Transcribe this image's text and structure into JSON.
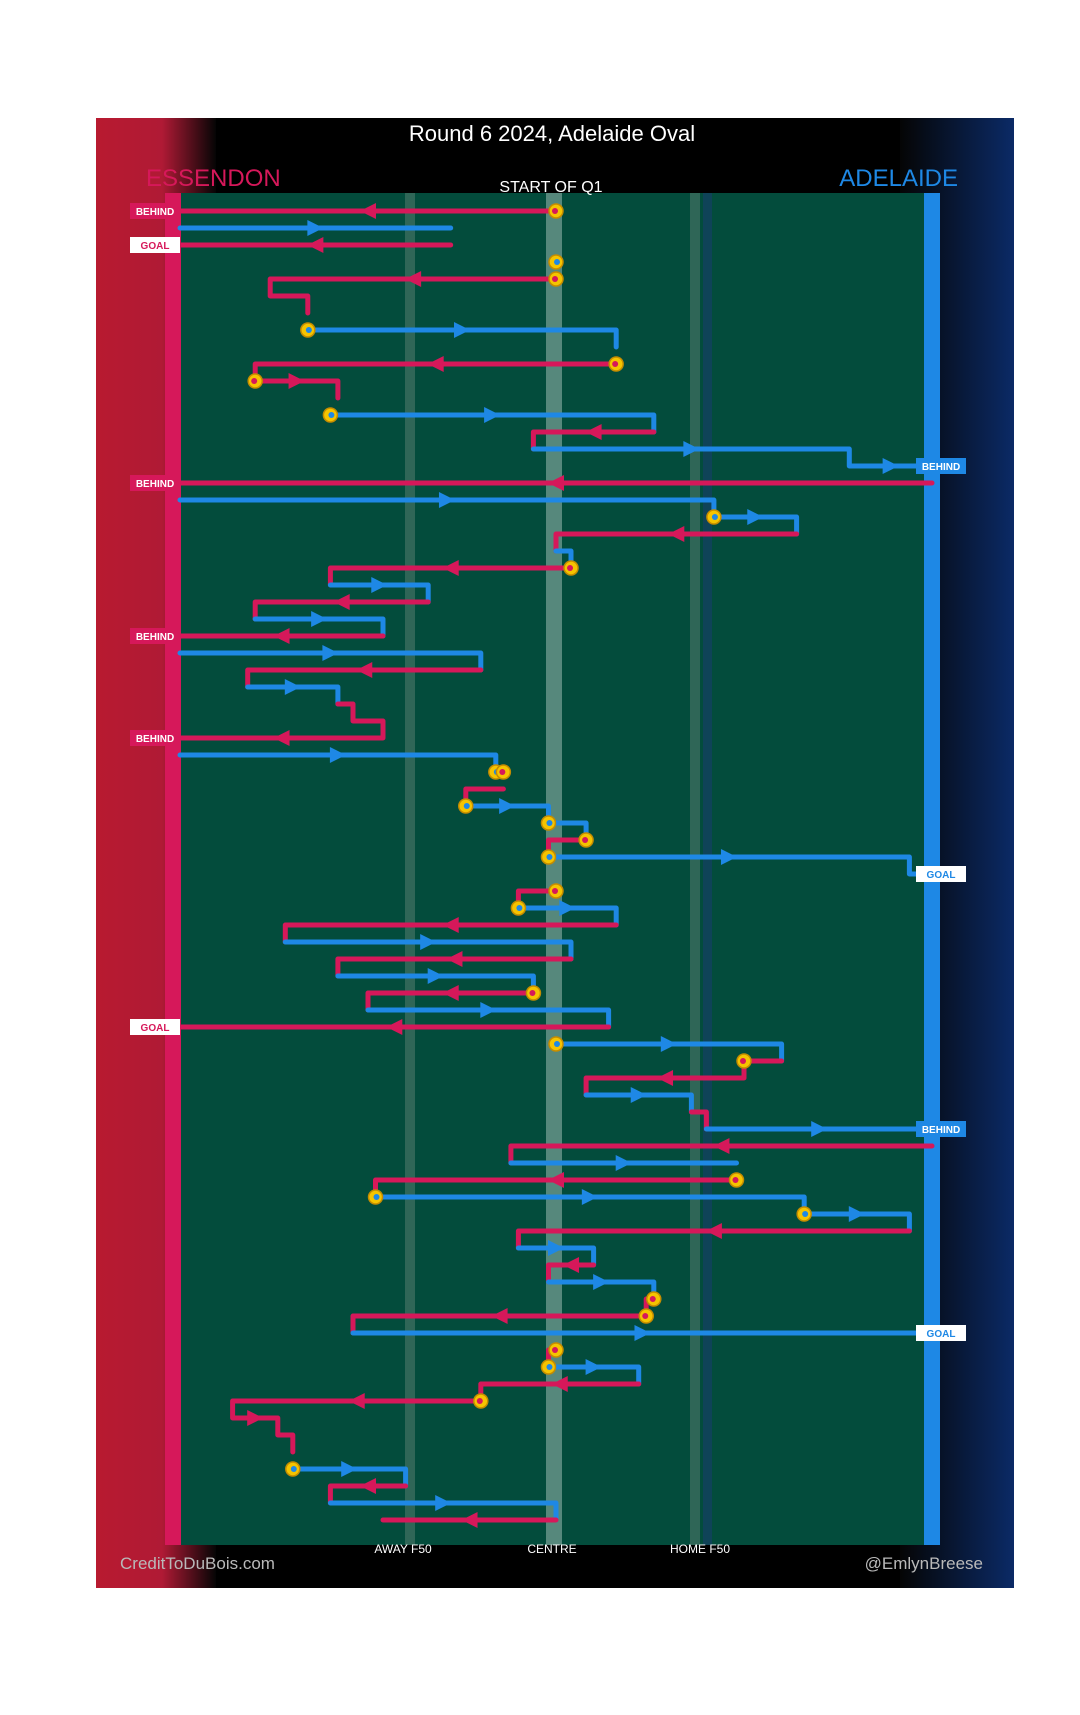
{
  "chart_data": {
    "type": "line",
    "title": "Round 6 2024, Adelaide Oval",
    "subtitle": "START OF Q1",
    "teams": {
      "left": {
        "name": "ESSENDON",
        "color": "#d6185a"
      },
      "right": {
        "name": "ADELAIDE",
        "color": "#1e88e5"
      }
    },
    "x_axis": {
      "range": [
        0,
        100
      ],
      "ticks": [
        {
          "value": 30,
          "label": "AWAY F50"
        },
        {
          "value": 50,
          "label": "CENTRE"
        },
        {
          "value": 70,
          "label": "HOME F50"
        }
      ]
    },
    "footer": {
      "left": "CreditToDuBois.com",
      "right": "@EmlynBreese"
    },
    "outcome_labels": {
      "behind": "BEHIND",
      "goal": "GOAL"
    },
    "series": [
      {
        "name": "ESSENDON",
        "team": "ESS",
        "values": "Essendon possession chains (pink, moving toward the Essendon end)"
      },
      {
        "name": "ADELAIDE",
        "team": "ADE",
        "values": "Adelaide possession chains (blue, moving toward the Adelaide end)"
      }
    ],
    "stoppage_marker": "stoppage",
    "colors": {
      "ess": "#d6185a",
      "ade": "#1e88e5",
      "ground": "#034c3c",
      "marker": "#f5c400",
      "markerStroke": "#c58c00"
    },
    "chains": [
      {
        "team": "ESS",
        "y": 0,
        "segs": [
          [
            50,
            50,
            0
          ],
          [
            50,
            0,
            0
          ]
        ],
        "start": 50,
        "end": "BEHIND"
      },
      {
        "team": "ADE",
        "y": 1,
        "segs": [
          [
            0,
            36,
            1
          ],
          [
            36,
            36,
            1
          ]
        ]
      },
      {
        "team": "ESS",
        "y": 2,
        "segs": [
          [
            36,
            36,
            2
          ],
          [
            36,
            0,
            2
          ]
        ],
        "end": "GOAL"
      },
      {
        "team": "ADE",
        "y": 3,
        "segs": [
          [
            50,
            50,
            3
          ]
        ],
        "start": 50
      },
      {
        "team": "ESS",
        "y": 4,
        "segs": [
          [
            50,
            12,
            4
          ],
          [
            12,
            12,
            5
          ],
          [
            12,
            17,
            5
          ],
          [
            17,
            17,
            6
          ]
        ],
        "start": 50
      },
      {
        "team": "ADE",
        "y": 7,
        "segs": [
          [
            17,
            58,
            7
          ],
          [
            58,
            58,
            8
          ]
        ],
        "start": 17
      },
      {
        "team": "ESS",
        "y": 9,
        "segs": [
          [
            58,
            10,
            9
          ],
          [
            10,
            10,
            10
          ]
        ],
        "start": 58
      },
      {
        "team": "ESS",
        "y": 10,
        "segs": [
          [
            10,
            21,
            10
          ],
          [
            21,
            21,
            11
          ]
        ],
        "start": 10
      },
      {
        "team": "ADE",
        "y": 12,
        "segs": [
          [
            20,
            63,
            12
          ],
          [
            63,
            63,
            13
          ]
        ],
        "start": 20
      },
      {
        "team": "ESS",
        "y": 13,
        "segs": [
          [
            63,
            47,
            13
          ],
          [
            47,
            47,
            14
          ]
        ]
      },
      {
        "team": "ADE",
        "y": 14,
        "segs": [
          [
            47,
            89,
            14
          ],
          [
            89,
            89,
            15
          ],
          [
            89,
            100,
            15
          ]
        ],
        "end": "BEHIND"
      },
      {
        "team": "ESS",
        "y": 16,
        "segs": [
          [
            100,
            0,
            16
          ]
        ],
        "end": "BEHIND"
      },
      {
        "team": "ADE",
        "y": 17,
        "segs": [
          [
            0,
            71,
            17
          ],
          [
            71,
            71,
            18
          ]
        ]
      },
      {
        "team": "ADE",
        "y": 18,
        "segs": [
          [
            71,
            82,
            18
          ],
          [
            82,
            82,
            19
          ]
        ],
        "start": 71
      },
      {
        "team": "ESS",
        "y": 19,
        "segs": [
          [
            82,
            50,
            19
          ],
          [
            50,
            50,
            20
          ]
        ]
      },
      {
        "team": "ADE",
        "y": 20,
        "segs": [
          [
            50,
            52,
            20
          ],
          [
            52,
            52,
            21
          ]
        ]
      },
      {
        "team": "ESS",
        "y": 21,
        "segs": [
          [
            52,
            20,
            21
          ],
          [
            20,
            20,
            22
          ]
        ],
        "start": 52
      },
      {
        "team": "ADE",
        "y": 22,
        "segs": [
          [
            20,
            33,
            22
          ],
          [
            33,
            33,
            23
          ]
        ]
      },
      {
        "team": "ESS",
        "y": 23,
        "segs": [
          [
            33,
            10,
            23
          ],
          [
            10,
            10,
            24
          ]
        ]
      },
      {
        "team": "ADE",
        "y": 24,
        "segs": [
          [
            10,
            27,
            24
          ],
          [
            27,
            27,
            25
          ]
        ]
      },
      {
        "team": "ESS",
        "y": 25,
        "segs": [
          [
            27,
            0,
            25
          ]
        ],
        "end": "BEHIND"
      },
      {
        "team": "ADE",
        "y": 26,
        "segs": [
          [
            0,
            40,
            26
          ],
          [
            40,
            40,
            27
          ]
        ]
      },
      {
        "team": "ESS",
        "y": 27,
        "segs": [
          [
            40,
            9,
            27
          ],
          [
            9,
            9,
            28
          ]
        ]
      },
      {
        "team": "ADE",
        "y": 28,
        "segs": [
          [
            9,
            21,
            28
          ],
          [
            21,
            21,
            29
          ]
        ]
      },
      {
        "team": "ESS",
        "y": 29,
        "segs": [
          [
            21,
            23,
            29
          ],
          [
            23,
            23,
            30
          ],
          [
            23,
            27,
            30
          ],
          [
            27,
            27,
            31
          ],
          [
            27,
            0,
            31
          ]
        ],
        "end": "BEHIND"
      },
      {
        "team": "ADE",
        "y": 32,
        "segs": [
          [
            0,
            42,
            32
          ],
          [
            42,
            42,
            33
          ]
        ],
        "start_end": 42
      },
      {
        "team": "ESS",
        "y": 33,
        "segs": [
          [
            42,
            43,
            33
          ]
        ],
        "start": 43
      },
      {
        "team": "ESS",
        "y": 34,
        "segs": [
          [
            43,
            38,
            34
          ],
          [
            38,
            38,
            35
          ]
        ]
      },
      {
        "team": "ADE",
        "y": 35,
        "segs": [
          [
            38,
            49,
            35
          ],
          [
            49,
            49,
            36
          ]
        ],
        "start": 38
      },
      {
        "team": "ADE",
        "y": 36,
        "segs": [
          [
            49,
            54,
            36
          ],
          [
            54,
            54,
            37
          ]
        ],
        "start": 49
      },
      {
        "team": "ESS",
        "y": 37,
        "segs": [
          [
            54,
            49,
            37
          ],
          [
            49,
            49,
            38
          ]
        ],
        "start": 54
      },
      {
        "team": "ADE",
        "y": 38,
        "segs": [
          [
            49,
            97,
            38
          ],
          [
            97,
            97,
            39
          ],
          [
            97,
            100,
            39
          ]
        ],
        "start": 49,
        "end": "GOAL"
      },
      {
        "team": "ESS",
        "y": 40,
        "segs": [
          [
            50,
            45,
            40
          ],
          [
            45,
            45,
            41
          ]
        ],
        "start": 50
      },
      {
        "team": "ADE",
        "y": 41,
        "segs": [
          [
            45,
            58,
            41
          ],
          [
            58,
            58,
            42
          ]
        ],
        "start": 45
      },
      {
        "team": "ESS",
        "y": 42,
        "segs": [
          [
            58,
            14,
            42
          ],
          [
            14,
            14,
            43
          ]
        ]
      },
      {
        "team": "ADE",
        "y": 43,
        "segs": [
          [
            14,
            52,
            43
          ],
          [
            52,
            52,
            44
          ]
        ]
      },
      {
        "team": "ESS",
        "y": 44,
        "segs": [
          [
            52,
            21,
            44
          ],
          [
            21,
            21,
            45
          ]
        ]
      },
      {
        "team": "ADE",
        "y": 45,
        "segs": [
          [
            21,
            47,
            45
          ],
          [
            47,
            47,
            46
          ]
        ]
      },
      {
        "team": "ESS",
        "y": 46,
        "segs": [
          [
            47,
            25,
            46
          ],
          [
            25,
            25,
            47
          ]
        ],
        "start": 47
      },
      {
        "team": "ADE",
        "y": 47,
        "segs": [
          [
            25,
            57,
            47
          ],
          [
            57,
            57,
            48
          ]
        ]
      },
      {
        "team": "ESS",
        "y": 48,
        "segs": [
          [
            57,
            0,
            48
          ]
        ],
        "end": "GOAL"
      },
      {
        "team": "ADE",
        "y": 49,
        "segs": [
          [
            50,
            80,
            49
          ],
          [
            80,
            80,
            50
          ]
        ],
        "start": 50
      },
      {
        "team": "ESS",
        "y": 50,
        "segs": [
          [
            80,
            75,
            50
          ],
          [
            75,
            75,
            51
          ],
          [
            75,
            54,
            51
          ],
          [
            54,
            54,
            52
          ]
        ],
        "start": 75
      },
      {
        "team": "ADE",
        "y": 52,
        "segs": [
          [
            54,
            68,
            52
          ],
          [
            68,
            68,
            53
          ]
        ]
      },
      {
        "team": "ESS",
        "y": 53,
        "segs": [
          [
            68,
            70,
            53
          ],
          [
            70,
            70,
            54
          ]
        ]
      },
      {
        "team": "ADE",
        "y": 54,
        "segs": [
          [
            70,
            100,
            54
          ]
        ],
        "end": "BEHIND"
      },
      {
        "team": "ESS",
        "y": 55,
        "segs": [
          [
            100,
            44,
            55
          ],
          [
            44,
            44,
            56
          ]
        ]
      },
      {
        "team": "ADE",
        "y": 56,
        "segs": [
          [
            44,
            74,
            56
          ]
        ]
      },
      {
        "team": "ESS",
        "y": 57,
        "segs": [
          [
            74,
            26,
            57
          ],
          [
            26,
            26,
            58
          ]
        ],
        "start": 74
      },
      {
        "team": "ADE",
        "y": 58,
        "segs": [
          [
            26,
            83,
            58
          ],
          [
            83,
            83,
            59
          ]
        ],
        "start": 26
      },
      {
        "team": "ADE",
        "y": 59,
        "segs": [
          [
            83,
            97,
            59
          ],
          [
            97,
            97,
            60
          ]
        ],
        "start": 83
      },
      {
        "team": "ESS",
        "y": 60,
        "segs": [
          [
            97,
            45,
            60
          ],
          [
            45,
            45,
            61
          ]
        ]
      },
      {
        "team": "ADE",
        "y": 61,
        "segs": [
          [
            45,
            55,
            61
          ],
          [
            55,
            55,
            62
          ]
        ]
      },
      {
        "team": "ESS",
        "y": 62,
        "segs": [
          [
            55,
            49,
            62
          ],
          [
            49,
            49,
            63
          ]
        ]
      },
      {
        "team": "ADE",
        "y": 63,
        "segs": [
          [
            49,
            63,
            63
          ],
          [
            63,
            63,
            64
          ]
        ]
      },
      {
        "team": "ESS",
        "y": 64,
        "segs": [
          [
            63,
            62,
            64
          ],
          [
            62,
            62,
            65
          ]
        ],
        "start": 63
      },
      {
        "team": "ESS",
        "y": 65,
        "segs": [
          [
            62,
            23,
            65
          ],
          [
            23,
            23,
            66
          ]
        ],
        "start": 62
      },
      {
        "team": "ADE",
        "y": 66,
        "segs": [
          [
            23,
            100,
            66
          ]
        ],
        "end": "GOAL"
      },
      {
        "team": "ESS",
        "y": 67,
        "segs": [
          [
            50,
            49,
            67
          ],
          [
            49,
            49,
            68
          ]
        ],
        "start": 50
      },
      {
        "team": "ADE",
        "y": 68,
        "segs": [
          [
            49,
            61,
            68
          ],
          [
            61,
            61,
            69
          ]
        ],
        "start": 49
      },
      {
        "team": "ESS",
        "y": 69,
        "segs": [
          [
            61,
            40,
            69
          ],
          [
            40,
            40,
            70
          ]
        ]
      },
      {
        "team": "ESS",
        "y": 70,
        "segs": [
          [
            40,
            7,
            70
          ],
          [
            7,
            7,
            71
          ],
          [
            7,
            13,
            71
          ],
          [
            13,
            13,
            72
          ],
          [
            13,
            15,
            72
          ],
          [
            15,
            15,
            73
          ]
        ],
        "start": 40
      },
      {
        "team": "ADE",
        "y": 74,
        "segs": [
          [
            15,
            30,
            74
          ],
          [
            30,
            30,
            75
          ]
        ],
        "start": 15
      },
      {
        "team": "ESS",
        "y": 75,
        "segs": [
          [
            30,
            20,
            75
          ],
          [
            20,
            20,
            76
          ]
        ]
      },
      {
        "team": "ADE",
        "y": 76,
        "segs": [
          [
            20,
            50,
            76
          ],
          [
            50,
            50,
            77
          ]
        ]
      },
      {
        "team": "ESS",
        "y": 77,
        "segs": [
          [
            50,
            27,
            77
          ]
        ]
      }
    ]
  }
}
